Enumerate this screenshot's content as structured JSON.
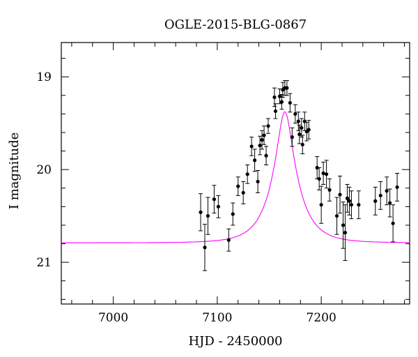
{
  "chart_data": {
    "type": "scatter",
    "title": "OGLE-2015-BLG-0867",
    "xlabel": "HJD - 2450000",
    "ylabel": "I magnitude",
    "xlim": [
      6950,
      7285
    ],
    "ylim": [
      21.45,
      18.63
    ],
    "y_inverted": true,
    "grid": false,
    "x_ticks": [
      7000,
      7100,
      7200
    ],
    "y_ticks": [
      19,
      20,
      21
    ],
    "colors": {
      "points": "#000000",
      "model": "#ff00ff",
      "axes": "#000000"
    },
    "series": [
      {
        "type": "scatter_errorbar",
        "x": [
          7084,
          7088,
          7091,
          7097,
          7101,
          7111,
          7115,
          7120,
          7125,
          7129,
          7133,
          7136,
          7139,
          7141,
          7143,
          7145,
          7147,
          7149,
          7155,
          7156,
          7160,
          7162,
          7163,
          7165,
          7167,
          7170,
          7172,
          7175,
          7178,
          7179,
          7181,
          7182,
          7184,
          7186,
          7188,
          7196,
          7198,
          7200,
          7202,
          7205,
          7208,
          7215,
          7218,
          7221,
          7223,
          7225,
          7227,
          7229,
          7236,
          7252,
          7257,
          7263,
          7266,
          7269,
          7273
        ],
        "y": [
          20.46,
          20.84,
          20.5,
          20.32,
          20.4,
          20.76,
          20.48,
          20.18,
          20.25,
          20.05,
          19.75,
          19.9,
          20.13,
          19.74,
          19.68,
          19.63,
          19.85,
          19.53,
          19.22,
          19.37,
          19.21,
          19.27,
          19.14,
          19.12,
          19.12,
          19.28,
          19.65,
          19.4,
          19.48,
          19.62,
          19.55,
          19.73,
          19.48,
          19.59,
          19.57,
          19.98,
          20.1,
          20.38,
          20.04,
          20.05,
          20.22,
          20.5,
          20.27,
          20.6,
          20.68,
          20.31,
          20.34,
          20.38,
          20.38,
          20.34,
          20.28,
          20.23,
          20.36,
          20.58,
          20.19
        ],
        "err": [
          0.2,
          0.25,
          0.2,
          0.15,
          0.12,
          0.12,
          0.12,
          0.1,
          0.12,
          0.1,
          0.1,
          0.12,
          0.12,
          0.1,
          0.1,
          0.1,
          0.1,
          0.08,
          0.1,
          0.08,
          0.08,
          0.08,
          0.08,
          0.08,
          0.08,
          0.1,
          0.1,
          0.1,
          0.1,
          0.1,
          0.1,
          0.1,
          0.1,
          0.1,
          0.1,
          0.12,
          0.12,
          0.2,
          0.12,
          0.15,
          0.12,
          0.2,
          0.2,
          0.25,
          0.3,
          0.15,
          0.15,
          0.15,
          0.15,
          0.15,
          0.15,
          0.15,
          0.15,
          0.2,
          0.15
        ]
      },
      {
        "type": "model_line",
        "t0": 7165,
        "tE": 24,
        "u0": 0.28,
        "I_base": 20.79
      }
    ]
  }
}
